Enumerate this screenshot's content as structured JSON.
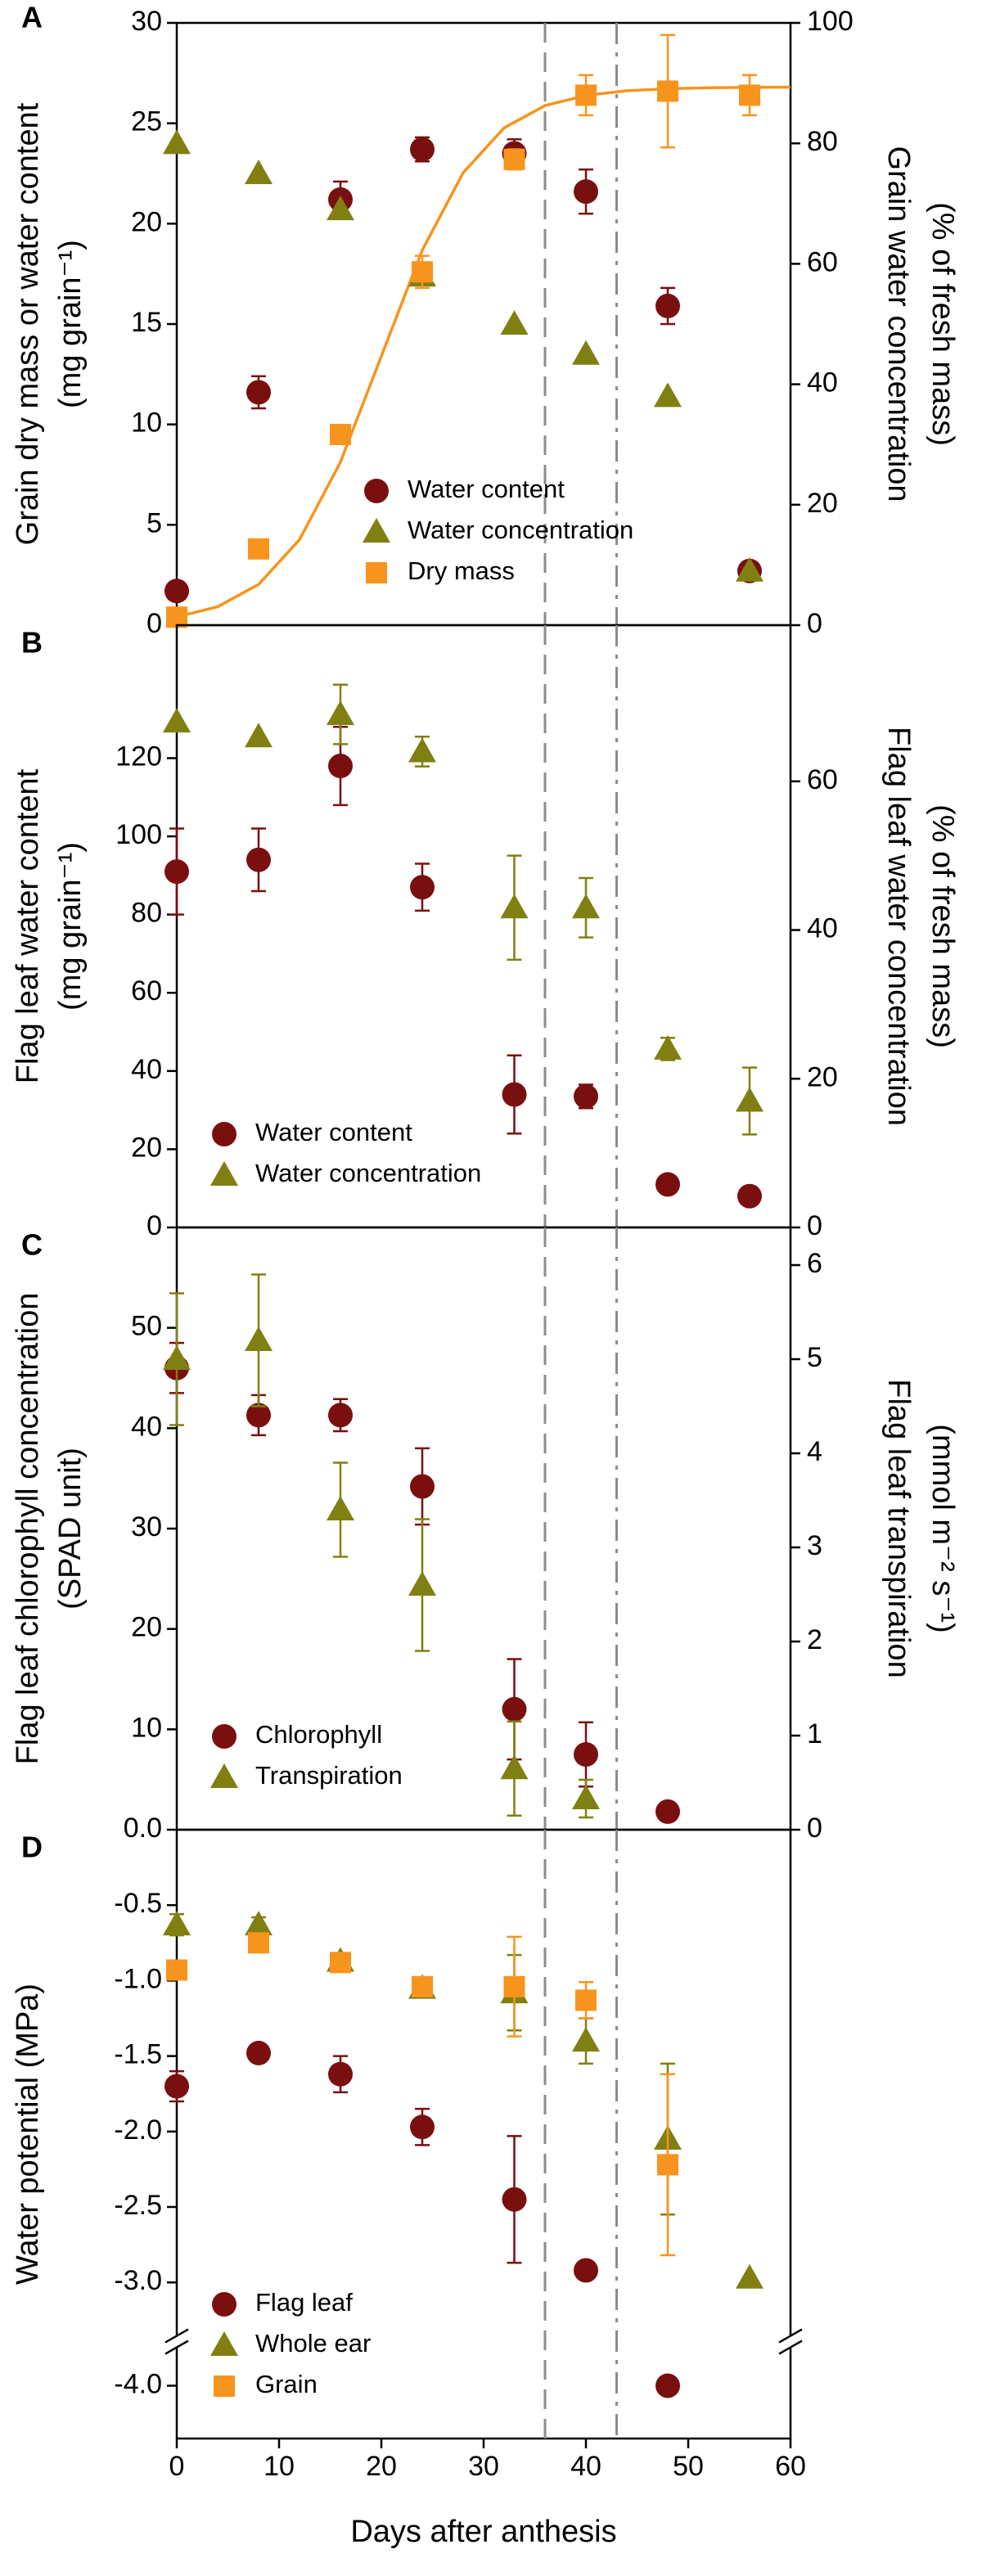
{
  "chart_data": [
    {
      "type": "scatter",
      "panel_label": "A",
      "ylabel": [
        "Grain dry mass or water content",
        "(mg grain⁻¹)"
      ],
      "y2label": [
        "Grain water concentration",
        "(% of fresh mass)"
      ],
      "xlim": [
        0,
        60
      ],
      "ylim": [
        0,
        30
      ],
      "yticks": [
        0,
        5,
        10,
        15,
        20,
        25,
        30
      ],
      "y2lim": [
        0,
        100
      ],
      "y2ticks": [
        0,
        20,
        40,
        60,
        80,
        100
      ],
      "legend": "lower center",
      "vlines": [
        {
          "x": 36,
          "style": "dashed"
        },
        {
          "x": 43,
          "style": "dashdot"
        }
      ],
      "series": [
        {
          "name": "Water content",
          "color": "#7a0f0f",
          "marker": "circle",
          "x": [
            0,
            8,
            16,
            24,
            33,
            40,
            48,
            56
          ],
          "values": [
            1.7,
            11.6,
            21.2,
            23.7,
            23.5,
            21.6,
            15.9,
            2.7
          ],
          "errors": [
            null,
            0.8,
            0.9,
            0.6,
            0.7,
            1.1,
            0.9,
            null
          ]
        },
        {
          "name": "Water concentration",
          "color": "#808012",
          "marker": "triangle",
          "axis": "y2",
          "x": [
            0,
            8,
            16,
            24,
            33,
            40,
            48,
            56
          ],
          "values": [
            80,
            75,
            69,
            58,
            50,
            45,
            38,
            9
          ],
          "errors": [
            null,
            null,
            null,
            null,
            null,
            null,
            null,
            null
          ]
        },
        {
          "name": "Dry mass",
          "color": "#f7941d",
          "marker": "square",
          "x": [
            0,
            8,
            16,
            24,
            33,
            40,
            48,
            56
          ],
          "values": [
            0.4,
            3.8,
            9.5,
            17.6,
            23.2,
            26.4,
            26.6,
            26.4
          ],
          "errors": [
            null,
            null,
            null,
            0.8,
            0.5,
            1.0,
            2.8,
            1.0
          ]
        }
      ],
      "fit_curve": {
        "color": "#f7941d",
        "x": [
          0,
          4,
          8,
          12,
          16,
          20,
          24,
          28,
          32,
          36,
          40,
          44,
          48,
          52,
          56,
          60
        ],
        "values": [
          0.41,
          0.92,
          2.03,
          4.26,
          8.12,
          13.4,
          18.68,
          22.54,
          24.77,
          25.88,
          26.39,
          26.62,
          26.72,
          26.77,
          26.79,
          26.8
        ]
      }
    },
    {
      "type": "scatter",
      "panel_label": "B",
      "ylabel": [
        "Flag leaf water content",
        "(mg grain⁻¹)"
      ],
      "y2label": [
        "Flag leaf water concentration",
        "(% of fresh mass)"
      ],
      "xlim": [
        0,
        60
      ],
      "ylim": [
        0,
        154
      ],
      "yticks": [
        0,
        20,
        40,
        60,
        80,
        100,
        120
      ],
      "y2lim": [
        0,
        81
      ],
      "y2ticks": [
        0,
        20,
        40,
        60
      ],
      "legend": "lower left",
      "vlines": [
        {
          "x": 36,
          "style": "dashed"
        },
        {
          "x": 43,
          "style": "dashdot"
        }
      ],
      "series": [
        {
          "name": "Water content",
          "color": "#7a0f0f",
          "marker": "circle",
          "x": [
            0,
            8,
            16,
            24,
            33,
            40,
            48,
            56
          ],
          "values": [
            91,
            94,
            118,
            87,
            34,
            33.5,
            11,
            8
          ],
          "errors": [
            11,
            8,
            10,
            6,
            10,
            3,
            null,
            null
          ]
        },
        {
          "name": "Water concentration",
          "color": "#808012",
          "marker": "triangle",
          "axis": "y2",
          "x": [
            0,
            8,
            16,
            24,
            33,
            40,
            48,
            56
          ],
          "values": [
            68,
            66,
            69,
            64,
            43,
            43,
            24,
            17
          ],
          "errors": [
            null,
            null,
            4,
            2,
            7,
            4,
            1.5,
            4.5
          ]
        }
      ]
    },
    {
      "type": "scatter",
      "panel_label": "C",
      "ylabel": [
        "Flag leaf chlorophyll concentration",
        "(SPAD unit)"
      ],
      "y2label": [
        "Flag leaf transpiration",
        "(mmol m⁻² s⁻¹)"
      ],
      "xlim": [
        0,
        60
      ],
      "ylim": [
        0,
        60
      ],
      "yticks": [
        10,
        20,
        30,
        40,
        50
      ],
      "y2lim": [
        0,
        6.4
      ],
      "y2ticks": [
        0,
        1,
        2,
        3,
        4,
        5,
        6
      ],
      "legend": "lower left",
      "vlines": [
        {
          "x": 36,
          "style": "dashed"
        },
        {
          "x": 43,
          "style": "dashdot"
        }
      ],
      "series": [
        {
          "name": "Chlorophyll",
          "color": "#7a0f0f",
          "marker": "circle",
          "x": [
            0,
            8,
            16,
            24,
            33,
            40,
            48
          ],
          "values": [
            46,
            41.3,
            41.3,
            34.2,
            12,
            7.5,
            1.8
          ],
          "errors": [
            2.5,
            2,
            1.6,
            3.8,
            5,
            3.2,
            null
          ]
        },
        {
          "name": "Transpiration",
          "color": "#808012",
          "marker": "triangle",
          "axis": "y2",
          "x": [
            0,
            8,
            16,
            24,
            33,
            40
          ],
          "values": [
            5.0,
            5.2,
            3.4,
            2.6,
            0.65,
            0.33
          ],
          "errors": [
            0.7,
            0.7,
            0.5,
            0.7,
            0.5,
            0.2
          ]
        }
      ]
    },
    {
      "type": "scatter",
      "panel_label": "D",
      "ylabel": [
        "Water potential (MPa)"
      ],
      "xlabel": "Days after anthesis",
      "xlim": [
        0,
        60
      ],
      "xticks": [
        0,
        10,
        20,
        30,
        40,
        50,
        60
      ],
      "ylim": [
        -4.35,
        0
      ],
      "ybreak": [
        -3.3,
        -3.8
      ],
      "yticks": [
        {
          "value": 0,
          "label": "0.0"
        },
        -0.5,
        {
          "value": -1,
          "label": "-1.0"
        },
        -1.5,
        {
          "value": -2,
          "label": "-2.0"
        },
        -2.5,
        {
          "value": -3,
          "label": "-3.0"
        },
        {
          "value": -4,
          "label": "-4.0"
        }
      ],
      "legend": "lower left",
      "vlines": [
        {
          "x": 36,
          "style": "dashed"
        },
        {
          "x": 43,
          "style": "dashdot"
        }
      ],
      "series": [
        {
          "name": "Flag leaf",
          "color": "#7a0f0f",
          "marker": "circle",
          "x": [
            0,
            8,
            16,
            24,
            33,
            40,
            48
          ],
          "values": [
            -1.7,
            -1.48,
            -1.62,
            -1.97,
            -2.45,
            -2.92,
            -4.0
          ],
          "errors": [
            0.1,
            0.05,
            0.12,
            0.12,
            0.42,
            null,
            null
          ]
        },
        {
          "name": "Whole ear",
          "color": "#808012",
          "marker": "triangle",
          "x": [
            0,
            8,
            16,
            24,
            33,
            40,
            48,
            56
          ],
          "values": [
            -0.63,
            -0.63,
            -0.87,
            -1.05,
            -1.08,
            -1.4,
            -2.05,
            -2.97
          ],
          "errors": [
            0.07,
            0.05,
            0.05,
            0.06,
            0.25,
            0.15,
            0.5,
            null
          ]
        },
        {
          "name": "Grain",
          "color": "#f7941d",
          "marker": "square",
          "x": [
            0,
            8,
            16,
            24,
            33,
            40,
            48
          ],
          "values": [
            -0.93,
            -0.75,
            -0.88,
            -1.04,
            -1.04,
            -1.13,
            -2.22
          ],
          "errors": [
            0.06,
            0.06,
            0.05,
            0.05,
            0.33,
            0.12,
            0.6
          ]
        }
      ]
    }
  ]
}
